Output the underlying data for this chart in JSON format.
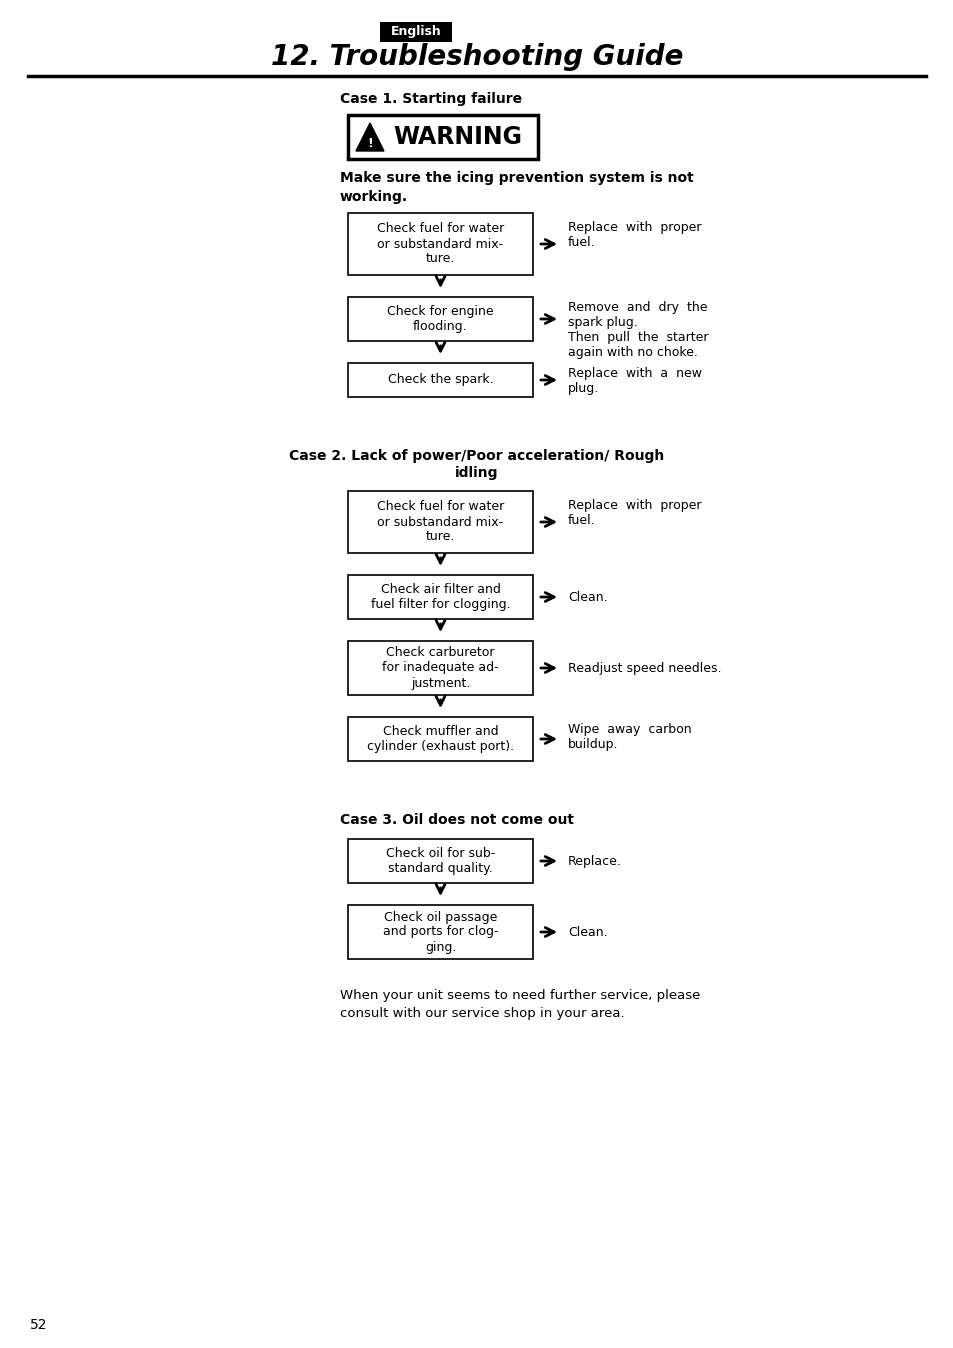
{
  "page_bg": "#ffffff",
  "page_num": "52",
  "english_label": "English",
  "title": "12. Troubleshooting Guide",
  "case1_heading": "Case 1. Starting failure",
  "warning_text": "WARNING",
  "warning_sub": "Make sure the icing prevention system is not\nworking.",
  "case1_boxes": [
    "Check fuel for water\nor substandard mix-\nture.",
    "Check for engine\nflooding.",
    "Check the spark."
  ],
  "case1_arrows": [
    "Replace  with  proper\nfuel.",
    "Remove  and  dry  the\nspark plug.\nThen  pull  the  starter\nagain with no choke.",
    "Replace  with  a  new\nplug."
  ],
  "case2_heading_line1": "Case 2. Lack of power/Poor acceleration/ Rough",
  "case2_heading_line2": "idling",
  "case2_boxes": [
    "Check fuel for water\nor substandard mix-\nture.",
    "Check air filter and\nfuel filter for clogging.",
    "Check carburetor\nfor inadequate ad-\njustment.",
    "Check muffler and\ncylinder (exhaust port)."
  ],
  "case2_arrows": [
    "Replace  with  proper\nfuel.",
    "Clean.",
    "Readjust speed needles.",
    "Wipe  away  carbon\nbuildup."
  ],
  "case3_heading": "Case 3. Oil does not come out",
  "case3_boxes": [
    "Check oil for sub-\nstandard quality.",
    "Check oil passage\nand ports for clog-\nging."
  ],
  "case3_arrows": [
    "Replace.",
    "Clean."
  ],
  "footer_text": "When your unit seems to need further service, please\nconsult with our service shop in your area."
}
